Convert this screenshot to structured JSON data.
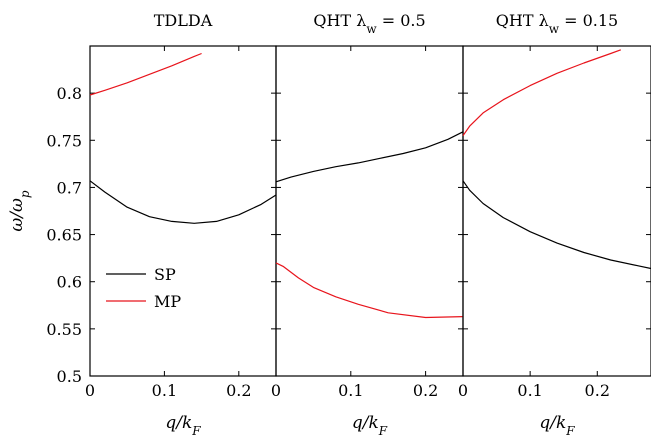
{
  "chart_data": {
    "type": "line",
    "ylabel": "ω/ω_p",
    "ylim": [
      0.5,
      0.85
    ],
    "yticks": [
      "0.5",
      "0.55",
      "0.6",
      "0.65",
      "0.7",
      "0.75",
      "0.8"
    ],
    "grid": false,
    "legend": {
      "placement": "lower-left of first panel",
      "entries": [
        {
          "name": "SP",
          "color": "#000000"
        },
        {
          "name": "MP",
          "color": "#e8141c"
        }
      ]
    },
    "panels": [
      {
        "title": "TDLDA",
        "xlabel": "q/k_F",
        "xlim": [
          0,
          0.25
        ],
        "xticks": [
          "0",
          "0.1",
          "0.2"
        ],
        "series": [
          {
            "name": "SP",
            "color": "#000000",
            "x": [
              0,
              0.02,
              0.05,
              0.08,
              0.11,
              0.14,
              0.17,
              0.2,
              0.23,
              0.25
            ],
            "y": [
              0.707,
              0.695,
              0.679,
              0.669,
              0.664,
              0.662,
              0.664,
              0.671,
              0.682,
              0.692
            ]
          },
          {
            "name": "MP",
            "color": "#e8141c",
            "x": [
              0,
              0.02,
              0.05,
              0.08,
              0.11,
              0.14,
              0.15
            ],
            "y": [
              0.798,
              0.803,
              0.811,
              0.82,
              0.829,
              0.839,
              0.842
            ]
          }
        ]
      },
      {
        "title": "QHT λ_w = 0.5",
        "xlabel": "q/k_F",
        "xlim": [
          0,
          0.25
        ],
        "xticks": [
          "0",
          "0.1",
          "0.2"
        ],
        "series": [
          {
            "name": "SP",
            "color": "#000000",
            "x": [
              0,
              0.02,
              0.05,
              0.08,
              0.11,
              0.14,
              0.17,
              0.2,
              0.23,
              0.25
            ],
            "y": [
              0.706,
              0.711,
              0.717,
              0.722,
              0.726,
              0.731,
              0.736,
              0.742,
              0.751,
              0.759
            ]
          },
          {
            "name": "MP",
            "color": "#e8141c",
            "x": [
              0,
              0.01,
              0.03,
              0.05,
              0.08,
              0.11,
              0.15,
              0.2,
              0.25
            ],
            "y": [
              0.62,
              0.616,
              0.604,
              0.594,
              0.584,
              0.576,
              0.567,
              0.562,
              0.563
            ]
          }
        ]
      },
      {
        "title": "QHT λ_w = 0.15",
        "xlabel": "q/k_F",
        "xlim": [
          0,
          0.28
        ],
        "xticks": [
          "0",
          "0.1",
          "0.2"
        ],
        "series": [
          {
            "name": "SP",
            "color": "#000000",
            "x": [
              0,
              0.01,
              0.03,
              0.06,
              0.1,
              0.14,
              0.18,
              0.22,
              0.26,
              0.28
            ],
            "y": [
              0.707,
              0.697,
              0.683,
              0.668,
              0.653,
              0.641,
              0.631,
              0.623,
              0.617,
              0.614
            ]
          },
          {
            "name": "MP",
            "color": "#e8141c",
            "x": [
              0,
              0.01,
              0.03,
              0.06,
              0.1,
              0.14,
              0.18,
              0.22,
              0.235
            ],
            "y": [
              0.755,
              0.765,
              0.779,
              0.793,
              0.808,
              0.821,
              0.832,
              0.842,
              0.846
            ]
          }
        ]
      }
    ]
  }
}
